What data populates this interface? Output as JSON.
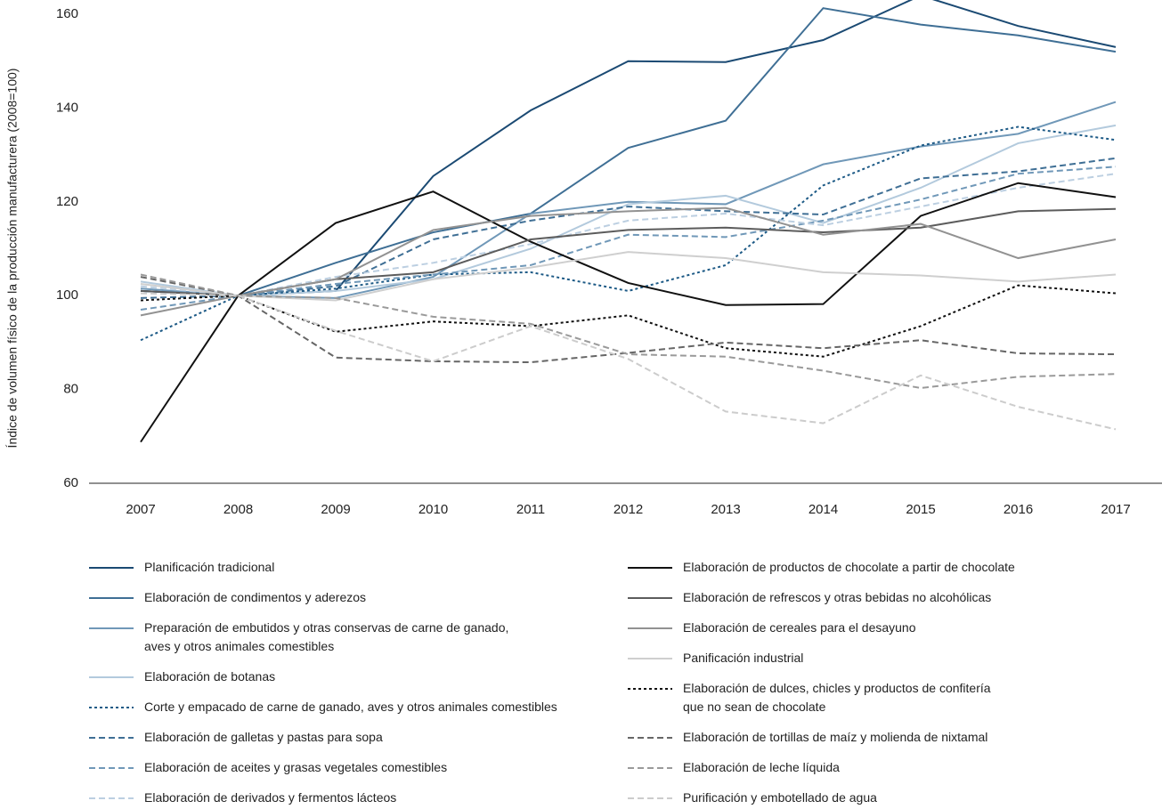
{
  "chart_data": {
    "type": "line",
    "y_label": "Índice de volumen físico de la producción manufacturera (2008=100)",
    "categories": [
      "2007",
      "2008",
      "2009",
      "2010",
      "2011",
      "2012",
      "2013",
      "2014",
      "2015",
      "2016",
      "2017"
    ],
    "ylim": [
      60,
      160
    ],
    "yticks": [
      60,
      80,
      100,
      120,
      140,
      160
    ],
    "grid": false,
    "series": [
      {
        "name": "Planificación tradicional",
        "color": "#1b4a73",
        "style": "solid",
        "values": [
          101,
          100,
          101,
          125.5,
          139.5,
          150,
          149.8,
          154.5,
          164,
          157.5,
          153
        ]
      },
      {
        "name": "Elaboración de condimentos y aderezos",
        "color": "#3f6f95",
        "style": "solid",
        "values": [
          101,
          100,
          107,
          113.5,
          117.5,
          131.5,
          137.3,
          161.3,
          157.8,
          155.5,
          152
        ]
      },
      {
        "name": "Preparación de embutidos y otras conservas de carne de ganado,\naves y otros animales comestibles",
        "color": "#7098b8",
        "style": "solid",
        "values": [
          101.5,
          100,
          99.5,
          104,
          117.5,
          120,
          119.5,
          128,
          131.8,
          134.5,
          141.3
        ]
      },
      {
        "name": "Elaboración de botanas",
        "color": "#b3cadd",
        "style": "solid",
        "values": [
          103,
          100,
          101,
          103.5,
          110,
          119.5,
          121.3,
          115.5,
          123,
          132.5,
          136.3
        ]
      },
      {
        "name": "Corte y empacado de carne de ganado, aves y otros animales comestibles",
        "color": "#1d5a86",
        "style": "dotted",
        "values": [
          90.5,
          100,
          101.5,
          104.5,
          105,
          101,
          106.5,
          123.5,
          132,
          136,
          133.2
        ]
      },
      {
        "name": "Elaboración de galletas y pastas para sopa",
        "color": "#3f6f95",
        "style": "dashed",
        "values": [
          99.5,
          100,
          102,
          112,
          116,
          119,
          118,
          117.3,
          125,
          126.5,
          129.3
        ]
      },
      {
        "name": "Elaboración de aceites y grasas vegetales comestibles",
        "color": "#7098b8",
        "style": "dashed",
        "values": [
          97,
          100,
          102.5,
          104.5,
          106.5,
          113,
          112.5,
          116,
          120.5,
          126,
          127.5
        ]
      },
      {
        "name": "Elaboración de derivados y fermentos lácteos",
        "color": "#bccfe1",
        "style": "dashed",
        "values": [
          102,
          100,
          104,
          107,
          111,
          116,
          117.5,
          115,
          119,
          123,
          126
        ]
      },
      {
        "name": "Elaboración de productos de chocolate a partir de chocolate",
        "color": "#111111",
        "style": "solid",
        "values": [
          68.8,
          100,
          115.5,
          122.2,
          111.5,
          102.7,
          98,
          98.2,
          117,
          124,
          121
        ]
      },
      {
        "name": "Elaboración de refrescos y otras bebidas no alcohólicas",
        "color": "#5c5c5c",
        "style": "solid",
        "values": [
          101,
          100,
          103.5,
          105,
          112,
          114,
          114.5,
          113.5,
          114.5,
          118,
          118.5
        ]
      },
      {
        "name": "Elaboración de cereales para el desayuno",
        "color": "#929292",
        "style": "solid",
        "values": [
          95.8,
          100,
          103.5,
          114,
          117,
          118,
          118.7,
          113,
          115.3,
          108,
          112
        ]
      },
      {
        "name": "Panificación industrial",
        "color": "#cfcfcf",
        "style": "solid",
        "values": [
          102.5,
          100,
          99,
          103.5,
          106,
          109.3,
          108,
          105,
          104.3,
          103,
          104.5
        ]
      },
      {
        "name": "Elaboración de dulces, chicles y productos de confitería\nque no sean de chocolate",
        "color": "#111111",
        "style": "dotted",
        "values": [
          99,
          100,
          92.3,
          94.5,
          93.5,
          95.8,
          88.8,
          87,
          93.5,
          102.2,
          100.5
        ]
      },
      {
        "name": "Elaboración de tortillas de maíz y molienda de nixtamal",
        "color": "#666666",
        "style": "dashed",
        "values": [
          104,
          100,
          86.8,
          86,
          85.8,
          87.8,
          90,
          88.8,
          90.5,
          87.7,
          87.5
        ]
      },
      {
        "name": "Elaboración de leche líquida",
        "color": "#9a9a9a",
        "style": "dashed",
        "values": [
          104.5,
          100,
          99.5,
          95.5,
          94,
          87.5,
          87,
          84,
          80.3,
          82.7,
          83.3
        ]
      },
      {
        "name": "Purificación y embotellado de agua",
        "color": "#cccccc",
        "style": "dashed",
        "values": [
          100.5,
          100,
          92.5,
          86,
          93.5,
          86.5,
          75.3,
          72.8,
          83,
          76.3,
          71.5
        ]
      }
    ]
  }
}
